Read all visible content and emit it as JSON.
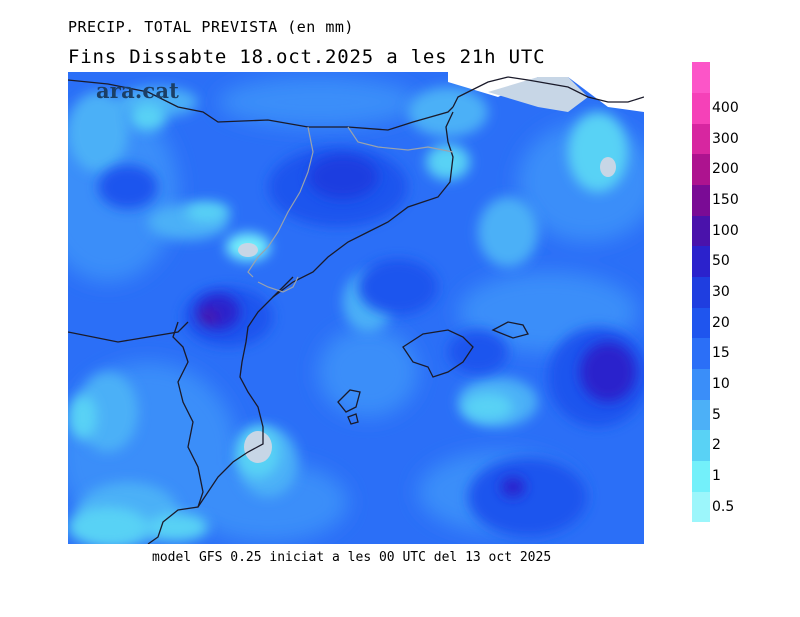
{
  "header": {
    "title": "PRECIP. TOTAL PREVISTA (en mm)",
    "subtitle": "Fins Dissabte   18.oct.2025 a les 21h UTC"
  },
  "brand": {
    "name": "ara.cat"
  },
  "footer": {
    "model_text": "model GFS 0.25 iniciat a les 00 UTC del 13 oct 2025"
  },
  "legend": {
    "items": [
      {
        "label": "0.5",
        "color": "#9cf6fb"
      },
      {
        "label": "1",
        "color": "#73f0fa"
      },
      {
        "label": "2",
        "color": "#59d2f5"
      },
      {
        "label": "5",
        "color": "#4cb0f7"
      },
      {
        "label": "10",
        "color": "#3a8ef9"
      },
      {
        "label": "15",
        "color": "#2b6ff7"
      },
      {
        "label": "20",
        "color": "#1f55ee"
      },
      {
        "label": "30",
        "color": "#1f3ee0"
      },
      {
        "label": "50",
        "color": "#2b22cc"
      },
      {
        "label": "100",
        "color": "#4a12ab"
      },
      {
        "label": "150",
        "color": "#7a0b95"
      },
      {
        "label": "200",
        "color": "#ad138f"
      },
      {
        "label": "300",
        "color": "#d726a0"
      },
      {
        "label": "400",
        "color": "#f541b8"
      },
      {
        "label": "",
        "color": "#fc55c8"
      }
    ]
  },
  "map_colors": {
    "dry": "#c7d6e6",
    "border_country": "#1a1a2a",
    "border_region": "#9aa3ad"
  }
}
